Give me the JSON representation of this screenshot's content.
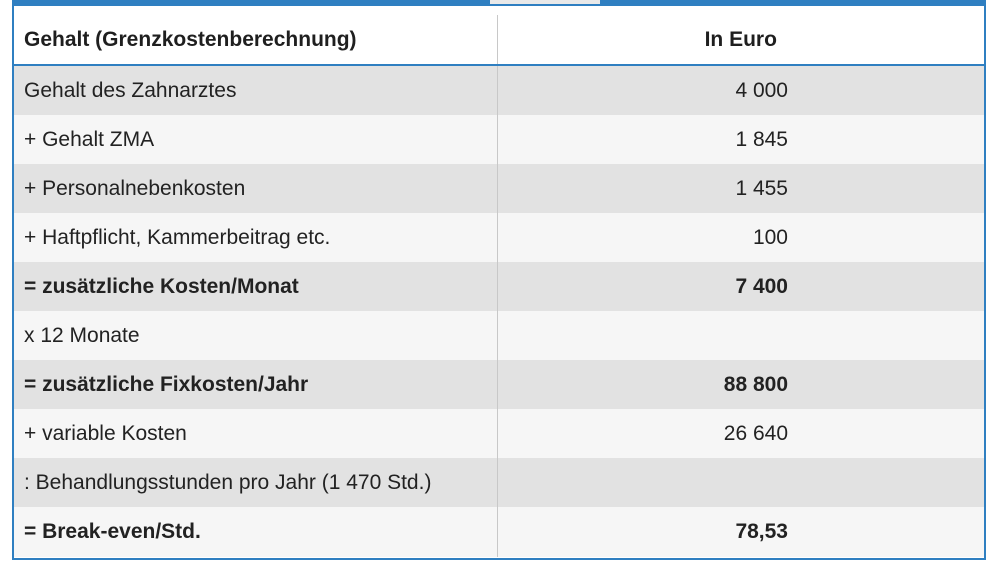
{
  "table": {
    "header": {
      "label": "Gehalt (Grenzkostenberechnung)",
      "value": "In Euro"
    },
    "rows": [
      {
        "label": "Gehalt des Zahnarztes",
        "value": "4 000"
      },
      {
        "label": "+ Gehalt ZMA",
        "value": "1 845"
      },
      {
        "label": "+ Personalnebenkosten",
        "value": "1 455"
      },
      {
        "label": "+ Haftpflicht, Kammerbeitrag etc.",
        "value": "100"
      },
      {
        "label": "= zusätzliche Kosten/Monat",
        "value": "7 400"
      },
      {
        "label": "x 12 Monate",
        "value": ""
      },
      {
        "label": "= zusätzliche Fixkosten/Jahr",
        "value": "88 800"
      },
      {
        "label": "+ variable Kosten",
        "value": "26 640"
      },
      {
        "label": ": Behandlungsstunden pro Jahr (1 470 Std.)",
        "value": ""
      },
      {
        "label": "= Break-even/Std.",
        "value": "78,53"
      }
    ]
  },
  "colors": {
    "border": "#2f7fc1",
    "shaded_row": "#e2e2e2",
    "light_row": "#f6f6f6"
  }
}
